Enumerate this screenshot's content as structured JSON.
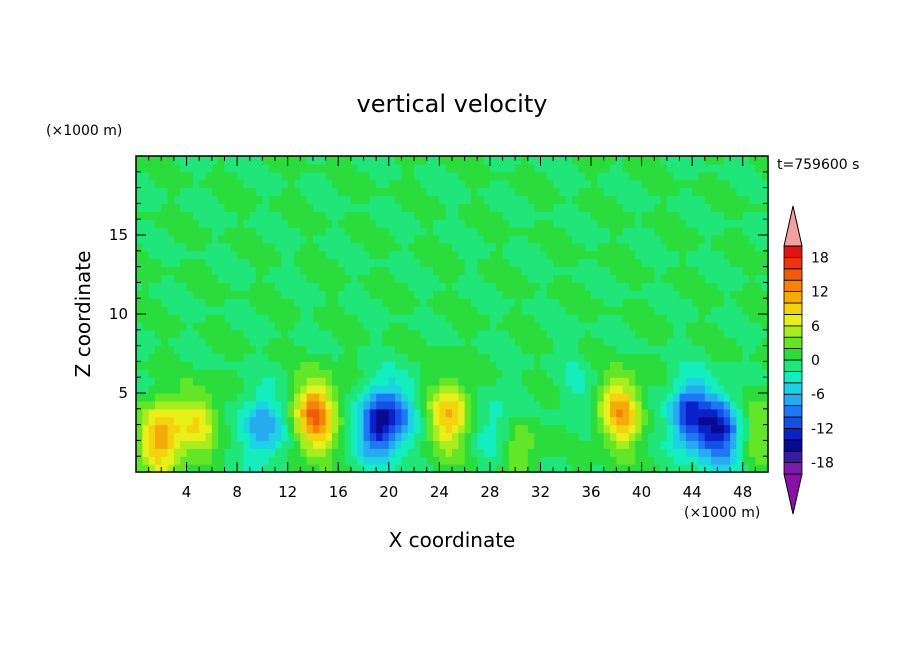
{
  "chart_data": {
    "type": "heatmap",
    "title": "vertical velocity",
    "xlabel": "X coordinate",
    "ylabel": "Z coordinate",
    "x_unit": "(×1000 m)",
    "y_unit": "(×1000 m)",
    "time_label": "t=759600 s",
    "xlim": [
      0,
      50
    ],
    "ylim": [
      0,
      20
    ],
    "x_ticks": [
      4,
      8,
      12,
      16,
      20,
      24,
      28,
      32,
      36,
      40,
      44,
      48
    ],
    "y_ticks": [
      5,
      10,
      15
    ],
    "colorbar": {
      "levels": [
        -20,
        -18,
        -16,
        -14,
        -12,
        -10,
        -8,
        -6,
        -4,
        -2,
        0,
        2,
        4,
        6,
        8,
        10,
        12,
        14,
        16,
        18,
        20
      ],
      "tick_labels": [
        "18",
        "12",
        "6",
        "0",
        "-6",
        "-12",
        "-18"
      ],
      "tick_values": [
        18,
        12,
        6,
        0,
        -6,
        -12,
        -18
      ],
      "colors": [
        "#7a1ca8",
        "#3a1aa0",
        "#0a0a90",
        "#0a20c8",
        "#1450e6",
        "#1e78f5",
        "#28aaf0",
        "#1ed2e6",
        "#14eebe",
        "#20e67a",
        "#2adc3c",
        "#64e628",
        "#a8ee1e",
        "#e8f01a",
        "#f5d20e",
        "#f5aa0a",
        "#f5820a",
        "#f05a0a",
        "#ee3212",
        "#e01414"
      ],
      "over_color": "#f4a0a0",
      "under_color": "#8a10a8"
    },
    "features": [
      {
        "x": 2,
        "z": 2.2,
        "w": 12
      },
      {
        "x": 5,
        "z": 3.0,
        "w": 7
      },
      {
        "x": 10,
        "z": 2.8,
        "w": -8
      },
      {
        "x": 14.2,
        "z": 3.6,
        "w": 14
      },
      {
        "x": 19.2,
        "z": 3.0,
        "w": -14
      },
      {
        "x": 21,
        "z": 3.8,
        "w": -5
      },
      {
        "x": 24.8,
        "z": 3.6,
        "w": 10
      },
      {
        "x": 28.5,
        "z": 2.8,
        "w": -4
      },
      {
        "x": 30.3,
        "z": 1.4,
        "w": 4
      },
      {
        "x": 34.8,
        "z": 5.5,
        "w": -2
      },
      {
        "x": 38.3,
        "z": 3.8,
        "w": 11
      },
      {
        "x": 43.8,
        "z": 3.6,
        "w": -12
      },
      {
        "x": 46.2,
        "z": 2.6,
        "w": -13
      },
      {
        "x": 49.5,
        "z": 3.0,
        "w": 4
      }
    ]
  }
}
